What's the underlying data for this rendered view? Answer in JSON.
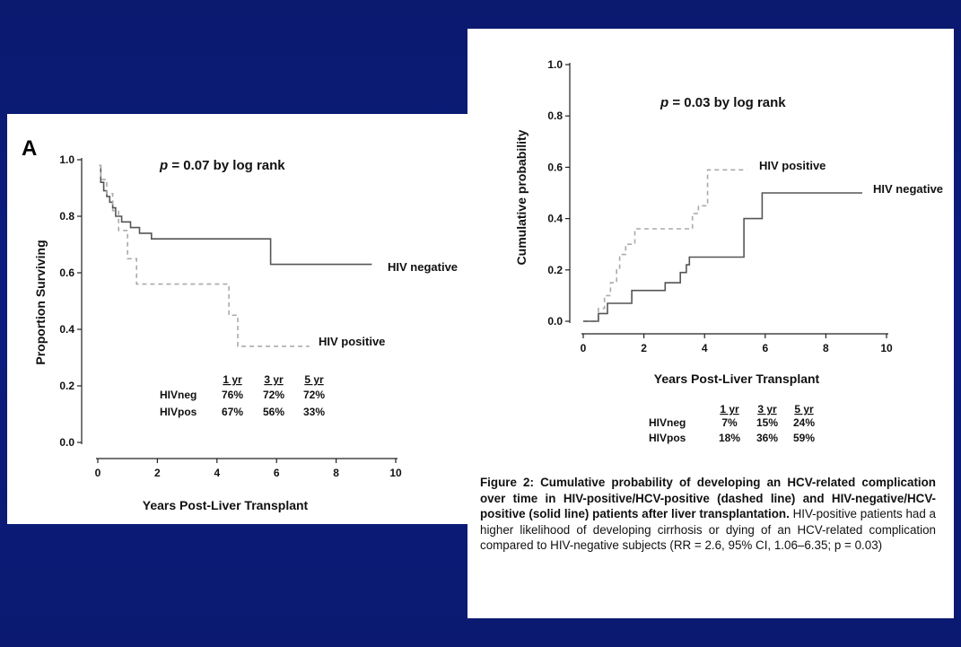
{
  "slide": {
    "background": "#0b1a6e"
  },
  "colors": {
    "solid": "#555555",
    "dashed": "#aaaaaa"
  },
  "chart_data": [
    {
      "type": "line",
      "panel_label": "A",
      "title": "",
      "annotation_p": "p",
      "annotation_rest": " = 0.07 by log rank",
      "xlabel": "Years Post-Liver Transplant",
      "ylabel": "Proportion Surviving",
      "xlim": [
        0,
        10
      ],
      "ylim": [
        0,
        1.0
      ],
      "xticks": [
        0,
        2,
        4,
        6,
        8,
        10
      ],
      "yticks": [
        0.0,
        0.2,
        0.4,
        0.6,
        0.8,
        1.0
      ],
      "ytick_labels": [
        "0.0",
        "0.2",
        "0.4",
        "0.6",
        "0.8",
        "1.0"
      ],
      "grid": false,
      "series": [
        {
          "name": "HIV negative",
          "style": "solid",
          "step_points": [
            [
              0.05,
              0.98
            ],
            [
              0.1,
              0.92
            ],
            [
              0.2,
              0.89
            ],
            [
              0.3,
              0.87
            ],
            [
              0.4,
              0.85
            ],
            [
              0.5,
              0.83
            ],
            [
              0.6,
              0.8
            ],
            [
              0.8,
              0.78
            ],
            [
              1.1,
              0.76
            ],
            [
              1.4,
              0.74
            ],
            [
              1.8,
              0.72
            ],
            [
              5.8,
              0.63
            ],
            [
              9.2,
              0.63
            ]
          ]
        },
        {
          "name": "HIV positive",
          "style": "dashed",
          "step_points": [
            [
              0.05,
              0.98
            ],
            [
              0.1,
              0.93
            ],
            [
              0.3,
              0.88
            ],
            [
              0.5,
              0.82
            ],
            [
              0.7,
              0.75
            ],
            [
              1.0,
              0.65
            ],
            [
              1.3,
              0.56
            ],
            [
              4.4,
              0.45
            ],
            [
              4.7,
              0.34
            ],
            [
              7.1,
              0.34
            ]
          ]
        }
      ],
      "table": {
        "headers": [
          "1 yr",
          "3 yr",
          "5 yr"
        ],
        "rows": [
          {
            "label": "HIVneg",
            "values": [
              "76%",
              "72%",
              "72%"
            ]
          },
          {
            "label": "HIVpos",
            "values": [
              "67%",
              "56%",
              "33%"
            ]
          }
        ]
      }
    },
    {
      "type": "line",
      "title": "",
      "annotation_p": "p",
      "annotation_rest": " = 0.03 by log rank",
      "xlabel": "Years Post-Liver Transplant",
      "ylabel": "Cumulative probability",
      "xlim": [
        0,
        10
      ],
      "ylim": [
        0,
        1.0
      ],
      "xticks": [
        0,
        2,
        4,
        6,
        8,
        10
      ],
      "yticks": [
        0.0,
        0.2,
        0.4,
        0.6,
        0.8,
        1.0
      ],
      "ytick_labels": [
        "0.0",
        "0.2",
        "0.4",
        "0.6",
        "0.8",
        "1.0"
      ],
      "grid": false,
      "series": [
        {
          "name": "HIV positive",
          "style": "dashed",
          "step_points": [
            [
              0.0,
              0.0
            ],
            [
              0.5,
              0.05
            ],
            [
              0.7,
              0.1
            ],
            [
              0.9,
              0.15
            ],
            [
              1.1,
              0.2
            ],
            [
              1.2,
              0.26
            ],
            [
              1.4,
              0.3
            ],
            [
              1.7,
              0.36
            ],
            [
              3.6,
              0.42
            ],
            [
              3.8,
              0.45
            ],
            [
              4.1,
              0.59
            ],
            [
              5.4,
              0.59
            ]
          ]
        },
        {
          "name": "HIV negative",
          "style": "solid",
          "step_points": [
            [
              0.0,
              0.0
            ],
            [
              0.5,
              0.03
            ],
            [
              0.8,
              0.07
            ],
            [
              1.6,
              0.12
            ],
            [
              2.7,
              0.15
            ],
            [
              3.2,
              0.19
            ],
            [
              3.4,
              0.22
            ],
            [
              3.5,
              0.25
            ],
            [
              5.3,
              0.4
            ],
            [
              5.9,
              0.5
            ],
            [
              9.2,
              0.5
            ]
          ]
        }
      ],
      "table": {
        "headers": [
          "1 yr",
          "3 yr",
          "5 yr"
        ],
        "rows": [
          {
            "label": "HIVneg",
            "values": [
              "7%",
              "15%",
              "24%"
            ]
          },
          {
            "label": "HIVpos",
            "values": [
              "18%",
              "36%",
              "59%"
            ]
          }
        ]
      }
    }
  ],
  "caption": {
    "bold": "Figure 2: Cumulative probability of developing an HCV-related complication over time in HIV-positive/HCV-positive (dashed line) and HIV-negative/HCV-positive (solid line) patients after liver transplantation.",
    "normal": " HIV-positive patients had a higher likelihood of developing cirrhosis or dying of an HCV-related complication compared to HIV-negative subjects (RR = 2.6, 95% CI, 1.06–6.35; p = 0.03)"
  }
}
